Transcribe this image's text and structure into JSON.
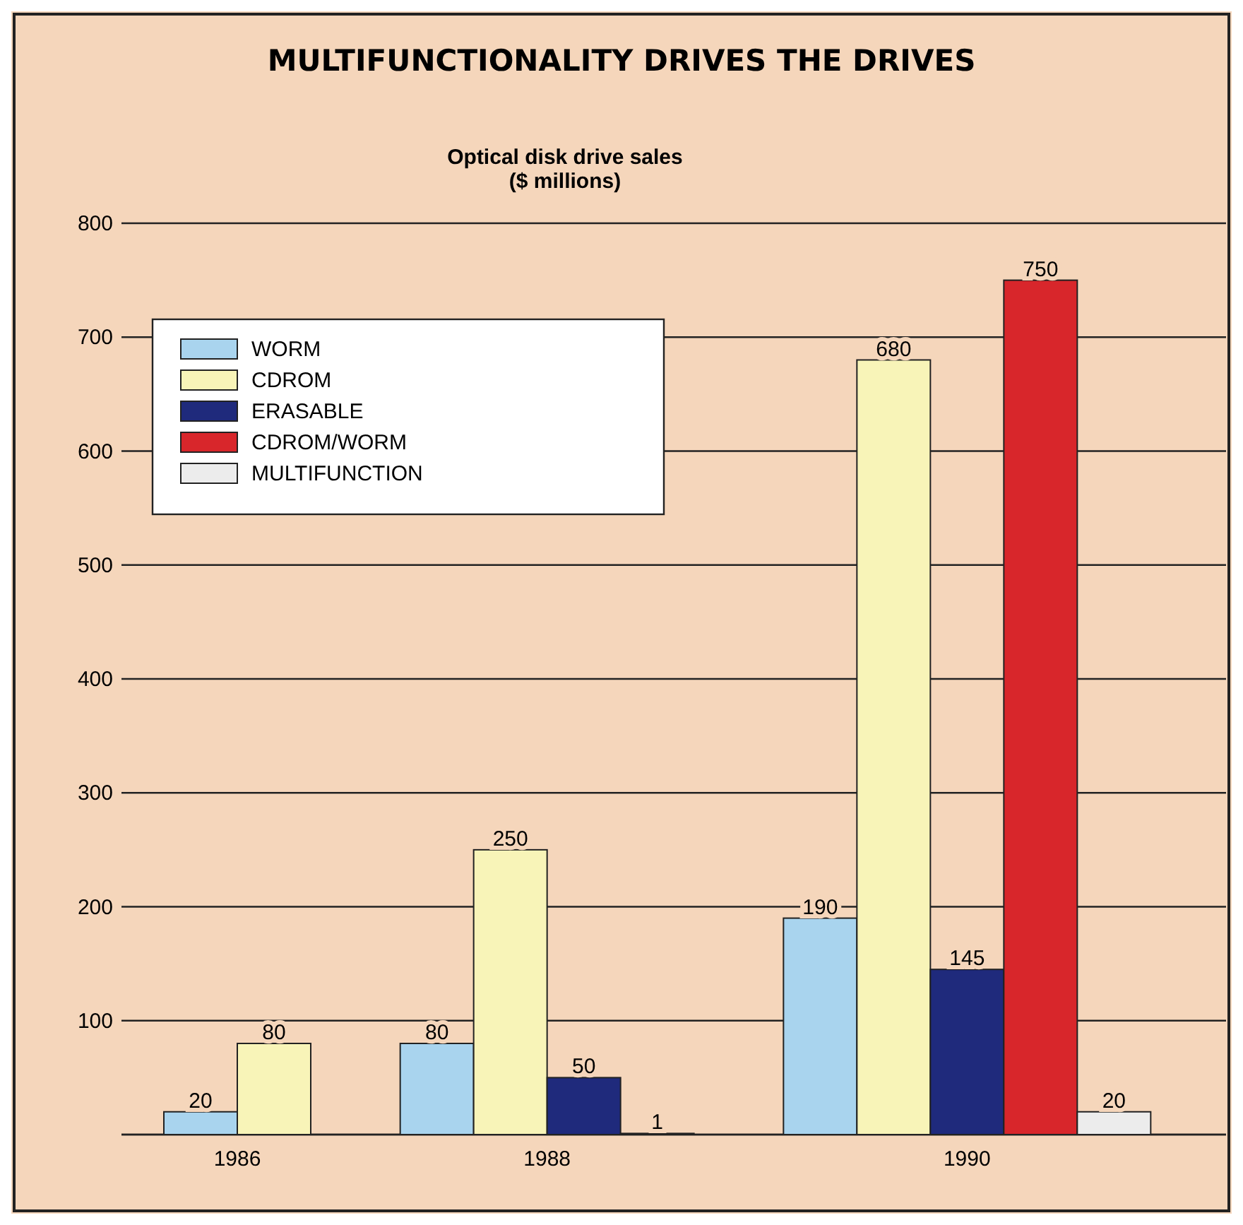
{
  "chart_data": {
    "type": "bar",
    "title": "MULTIFUNCTIONALITY DRIVES THE DRIVES",
    "subtitle": "Optical disk drive sales\n($ millions)",
    "categories": [
      "1986",
      "1988",
      "1990"
    ],
    "series": [
      {
        "name": "WORM",
        "color": "#a9d4ee",
        "values": [
          20,
          80,
          190
        ]
      },
      {
        "name": "CDROM",
        "color": "#f8f4b8",
        "values": [
          80,
          250,
          680
        ]
      },
      {
        "name": "ERASABLE",
        "color": "#1f2a7c",
        "values": [
          null,
          50,
          145
        ]
      },
      {
        "name": "CDROM/WORM",
        "color": "#d8262b",
        "values": [
          null,
          1,
          750
        ]
      },
      {
        "name": "MULTIFUNCTION",
        "color": "#ececec",
        "values": [
          null,
          null,
          20
        ]
      }
    ],
    "ylim": [
      0,
      800
    ],
    "yticks": [
      {
        "value": 0,
        "label": null
      },
      100,
      200,
      300,
      400,
      500,
      600,
      700,
      800
    ],
    "grid": "y",
    "legend": "top left",
    "data_labels": true
  }
}
